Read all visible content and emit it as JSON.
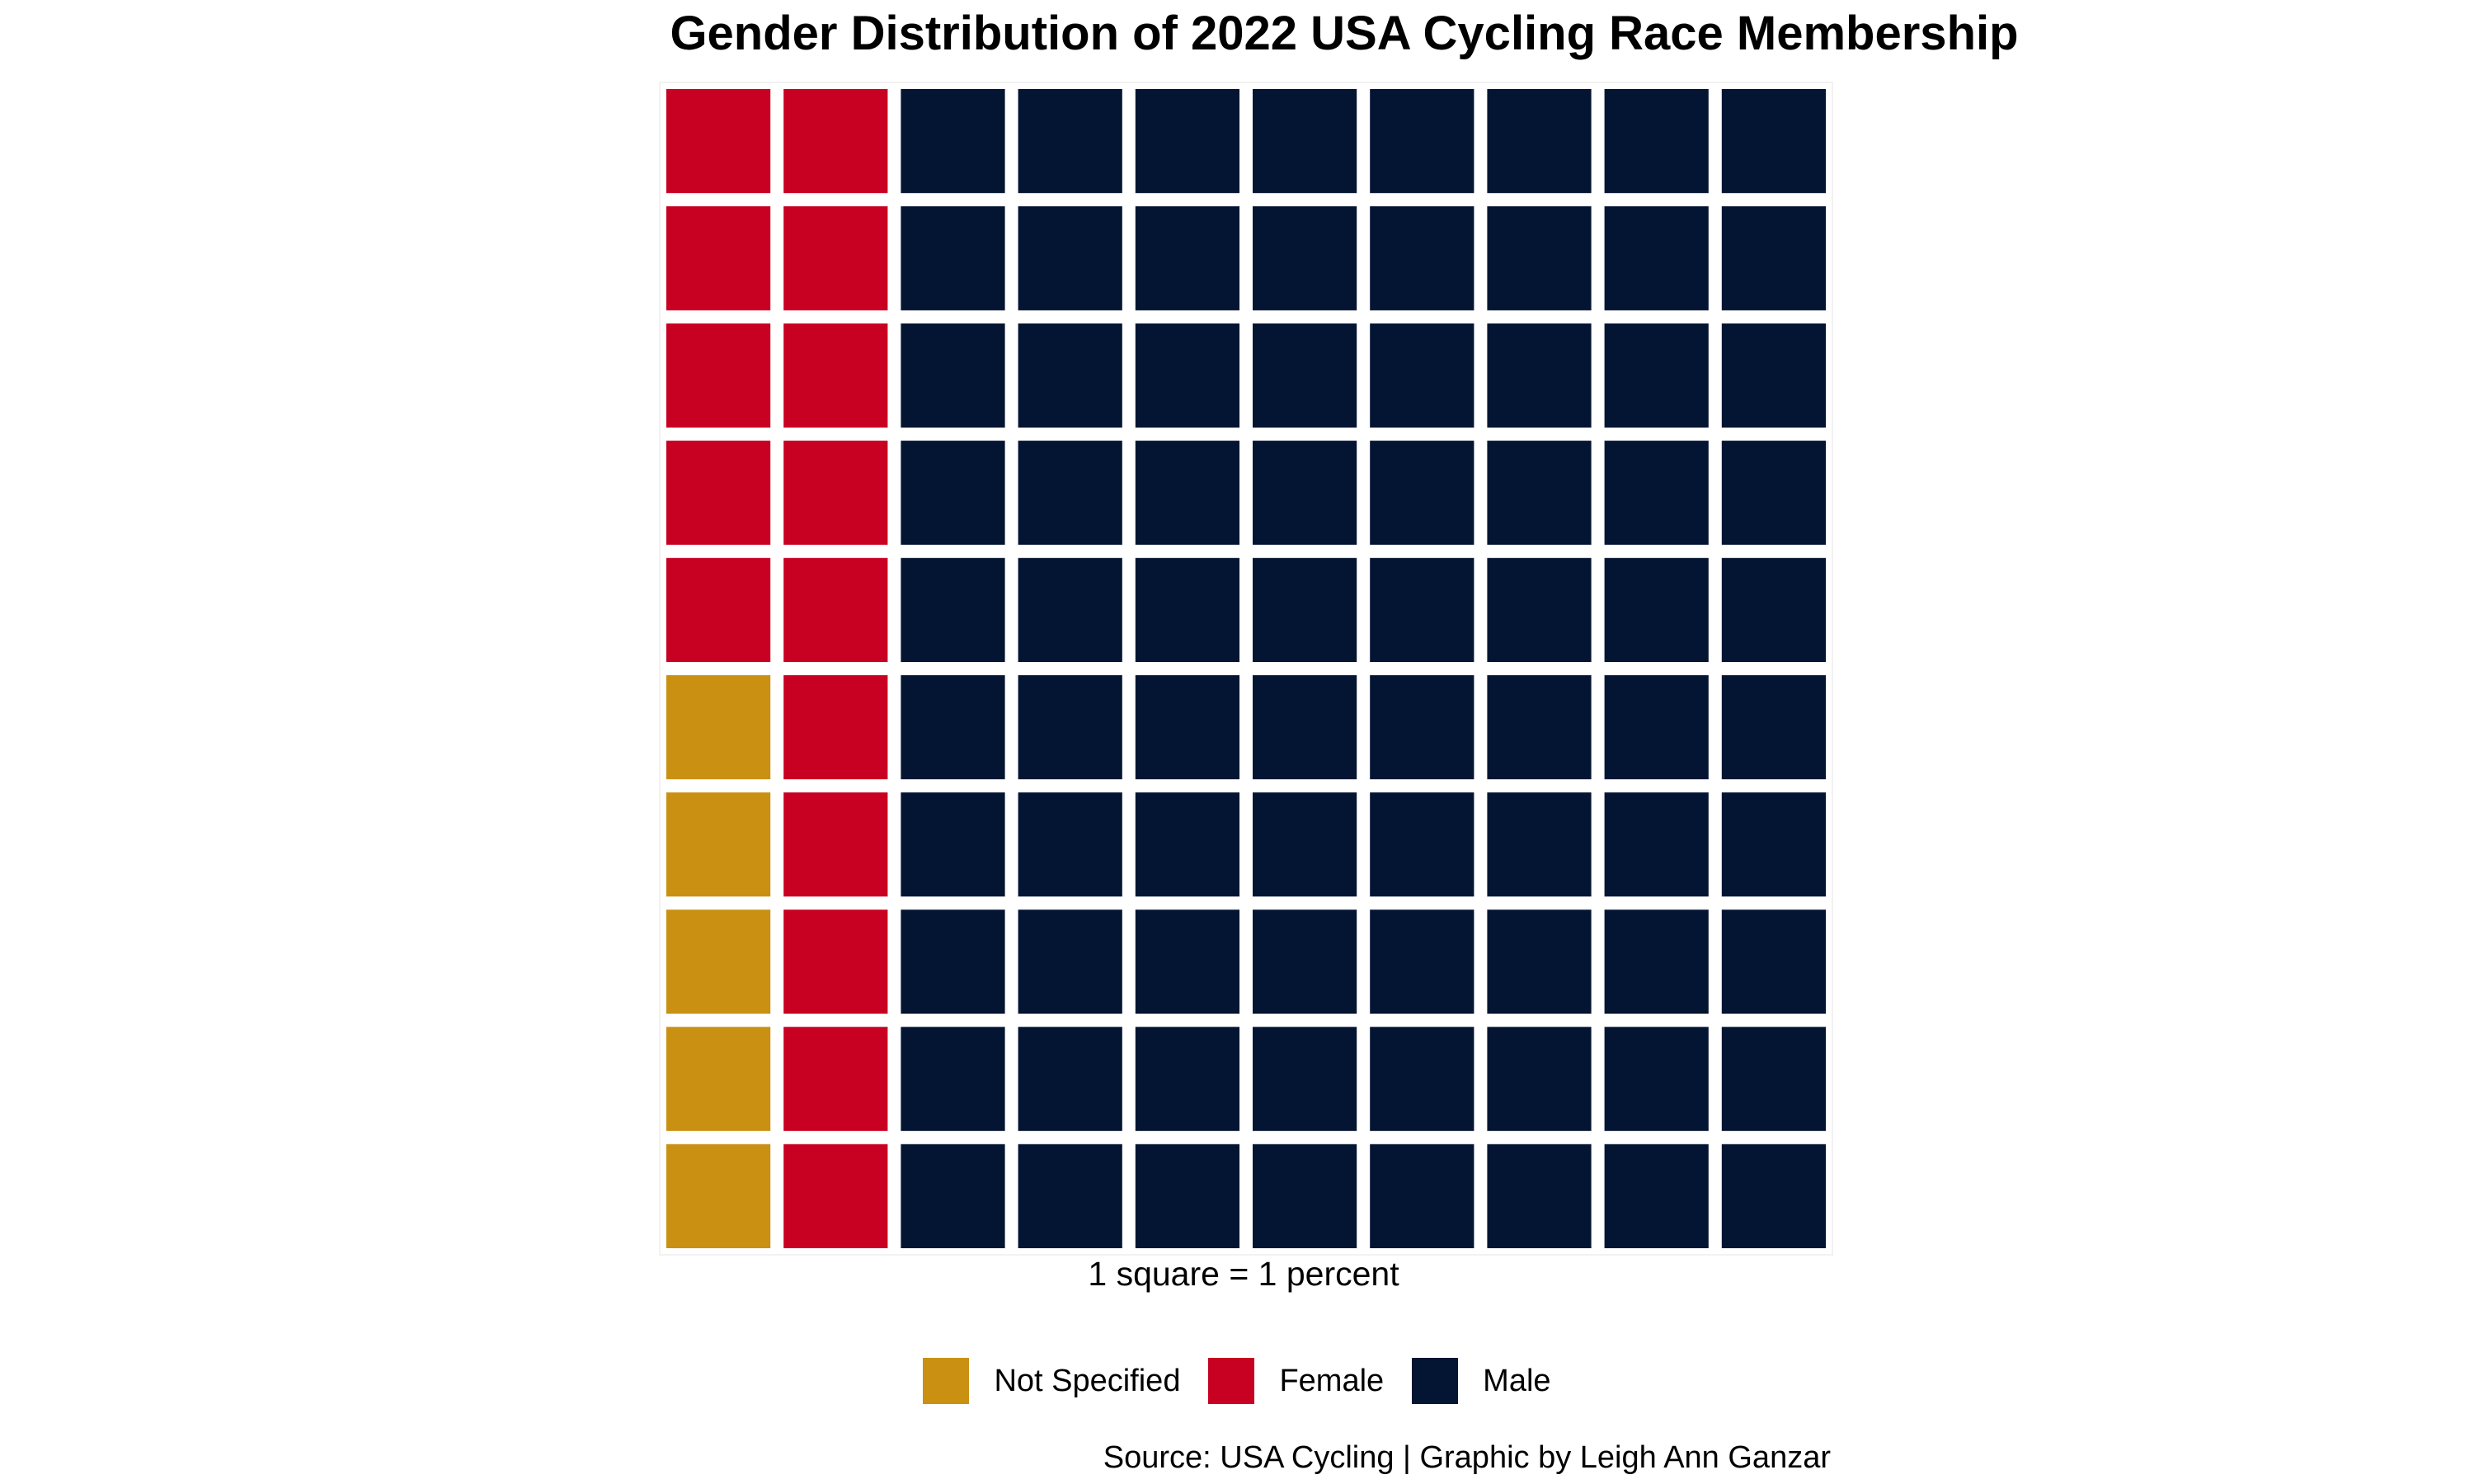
{
  "chart_data": {
    "type": "waffle",
    "title": "Gender Distribution of 2022 USA Cycling Race Membership",
    "caption": "1 square = 1 percent",
    "source": "Source: USA Cycling | Graphic by Leigh Ann Ganzar",
    "grid": {
      "rows": 10,
      "cols": 10
    },
    "categories": [
      {
        "name": "Not Specified",
        "value": 5,
        "color": "#C99012"
      },
      {
        "name": "Female",
        "value": 15,
        "color": "#C80021"
      },
      {
        "name": "Male",
        "value": 80,
        "color": "#041533"
      }
    ],
    "legend_position": "bottom"
  }
}
